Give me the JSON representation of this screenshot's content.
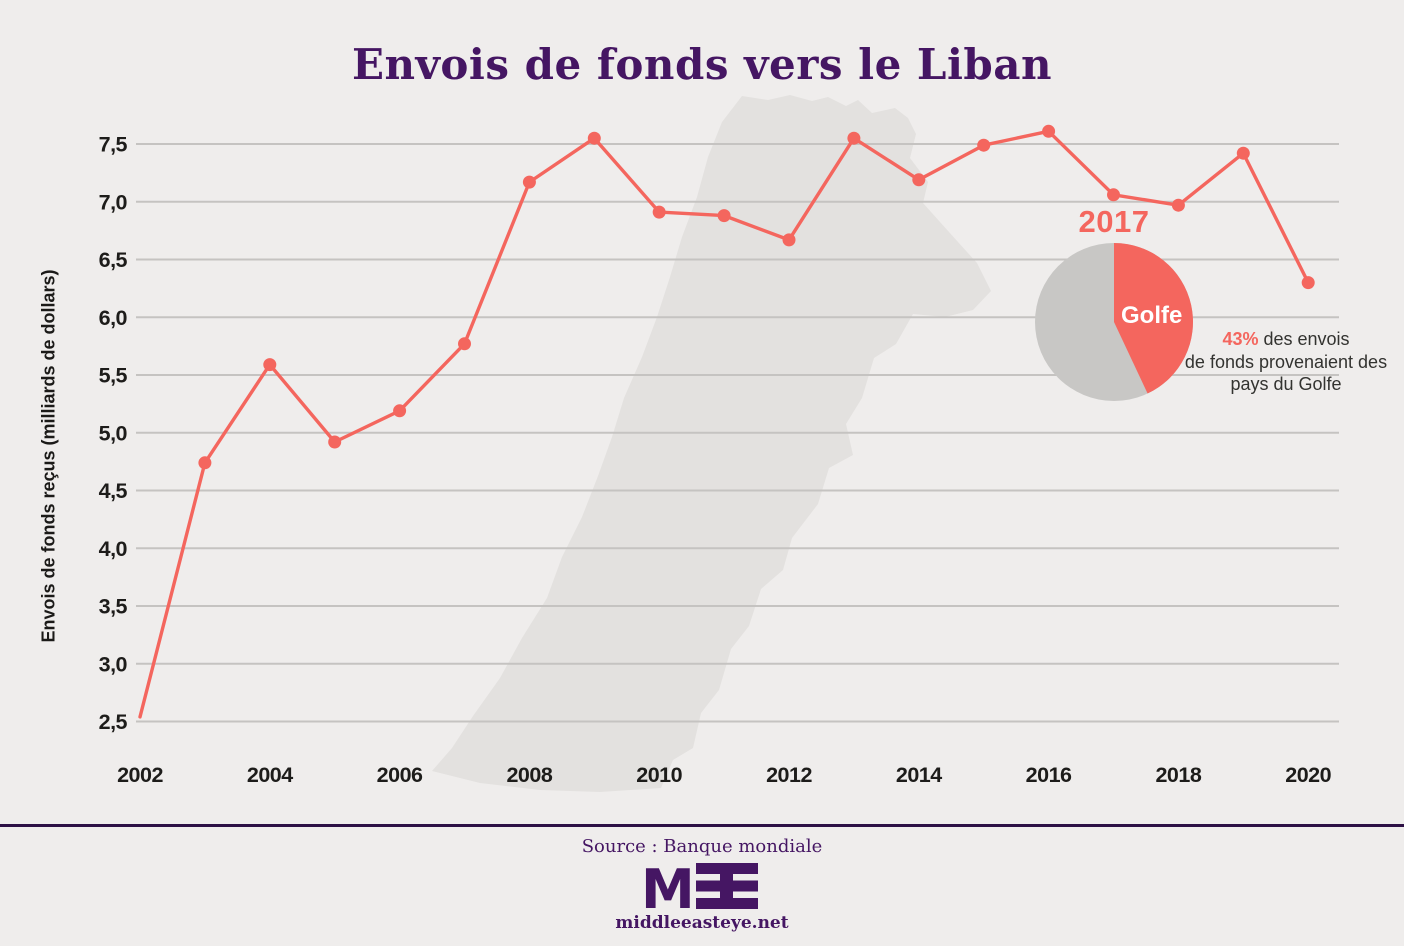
{
  "chart_data": {
    "type": "line",
    "title": "Envois de fonds vers le Liban",
    "ylabel": "Envois de fonds reçus (milliards de dollars)",
    "xlabel": "",
    "series_name": "Envois de fonds reçus",
    "x": [
      2002,
      2003,
      2004,
      2005,
      2006,
      2007,
      2008,
      2009,
      2010,
      2011,
      2012,
      2013,
      2014,
      2015,
      2016,
      2017,
      2018,
      2019,
      2020
    ],
    "values": [
      2.54,
      4.74,
      5.59,
      4.92,
      5.19,
      5.77,
      7.17,
      7.55,
      6.91,
      6.88,
      6.67,
      7.55,
      7.19,
      7.49,
      7.61,
      7.06,
      6.97,
      7.42,
      6.3
    ],
    "ylim": [
      2.5,
      7.5
    ],
    "grid": true,
    "x_tick_labels": [
      "2002",
      "2004",
      "2006",
      "2008",
      "2010",
      "2012",
      "2014",
      "2016",
      "2018",
      "2020"
    ],
    "y_tick_values": [
      7.5,
      7.0,
      6.5,
      6.0,
      5.5,
      5.0,
      4.5,
      4.0,
      3.5,
      3.0,
      2.5
    ],
    "y_tick_labels": [
      "7,5",
      "7,0",
      "6,5",
      "6,0",
      "5,5",
      "5,0",
      "4,5",
      "4,0",
      "3,5",
      "3,0",
      "2,5"
    ],
    "line_color": "#f4665e"
  },
  "inset_pie": {
    "type": "pie",
    "title": "2017",
    "slices": [
      {
        "label": "Golfe",
        "pct": 43,
        "color": "#f4665e"
      },
      {
        "label": "",
        "pct": 57,
        "color": "#c8c7c5"
      }
    ]
  },
  "annotation": {
    "highlight": "43%",
    "line1_rest": " des envois",
    "line2": "de fonds provenaient des",
    "line3": "pays du Golfe"
  },
  "footer": {
    "source": "Source : Banque mondiale",
    "logo_m": "M",
    "site": "middleeasteye.net"
  },
  "colors": {
    "accent_salmon": "#f4665e",
    "brand_purple": "#451663",
    "pie_gray": "#c8c7c5",
    "gridline_gray": "#c5c3c1",
    "background": "#efedec",
    "map_watermark": "#e3e1df"
  }
}
